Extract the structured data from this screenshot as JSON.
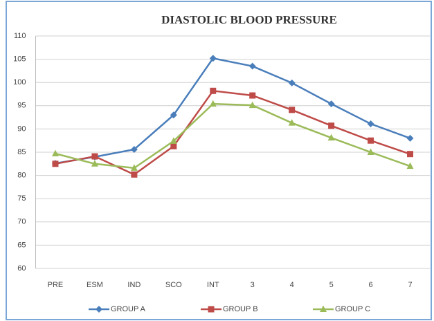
{
  "chart_data": {
    "type": "line",
    "title": "DIASTOLIC BLOOD PRESSURE",
    "categories": [
      "PRE",
      "ESM",
      "IND",
      "SCO",
      "INT",
      "3",
      "4",
      "5",
      "6",
      "7"
    ],
    "series": [
      {
        "name": "GROUP A",
        "color": "#4a7ebb",
        "marker": "diamond",
        "values": [
          82.6,
          84.0,
          85.6,
          93.0,
          105.2,
          103.5,
          99.9,
          95.4,
          91.1,
          88.0
        ]
      },
      {
        "name": "GROUP B",
        "color": "#be4b48",
        "marker": "square",
        "values": [
          82.5,
          84.1,
          80.2,
          86.3,
          98.2,
          97.2,
          94.1,
          90.7,
          87.5,
          84.6
        ]
      },
      {
        "name": "GROUP C",
        "color": "#9bbb59",
        "marker": "triangle",
        "values": [
          84.7,
          82.5,
          81.6,
          87.4,
          95.4,
          95.1,
          91.3,
          88.1,
          85.0,
          82.0
        ]
      }
    ],
    "ylim": [
      60,
      110
    ],
    "yticks": [
      60,
      65,
      70,
      75,
      80,
      85,
      90,
      95,
      100,
      105,
      110
    ],
    "grid": true,
    "legend": "bottom"
  }
}
